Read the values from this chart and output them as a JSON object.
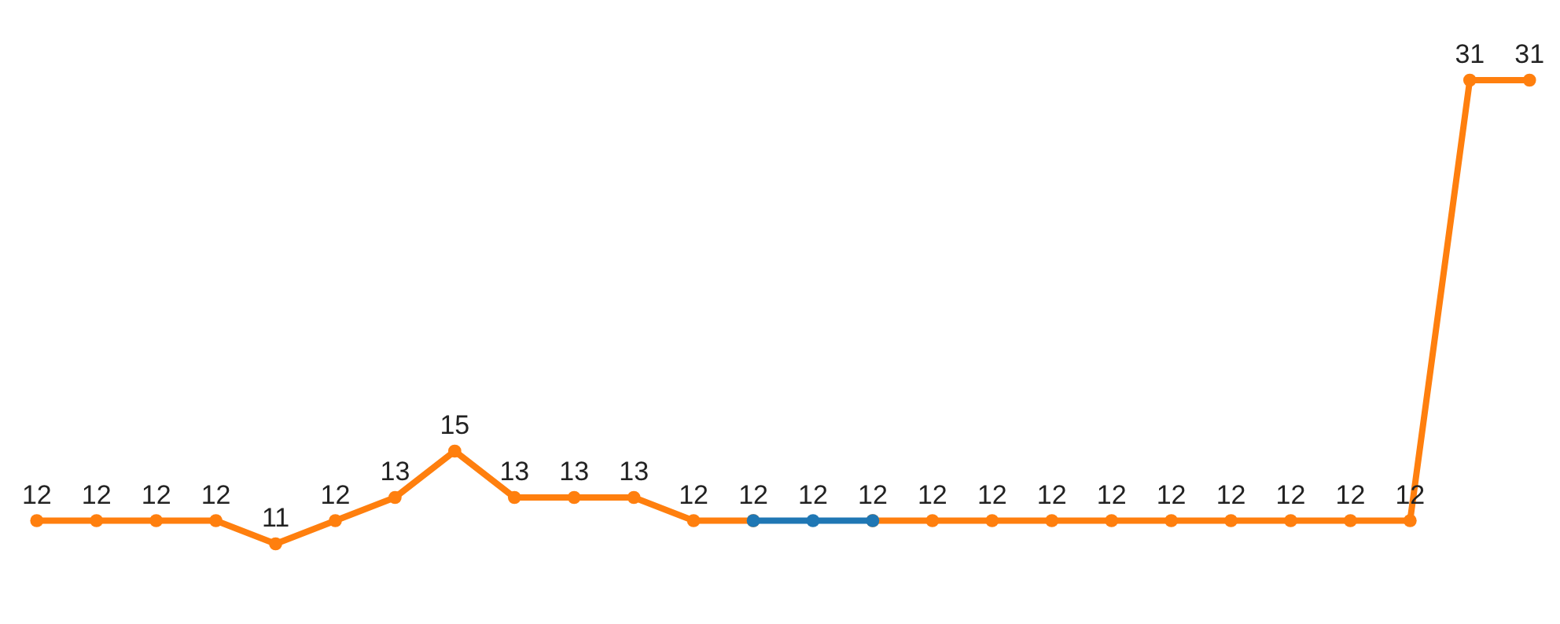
{
  "chart_data": {
    "type": "line",
    "categories": [
      null,
      null,
      null,
      null,
      null,
      null,
      null,
      null,
      null,
      null,
      null,
      null,
      null,
      null,
      null,
      null,
      null,
      null,
      null,
      null,
      null,
      null,
      null,
      null,
      null,
      null
    ],
    "marker": "circle",
    "line_style": "solid",
    "series": [
      {
        "color": "#ff7f0e",
        "values": [
          12,
          12,
          12,
          12,
          11,
          12,
          13,
          15,
          13,
          13,
          13,
          12,
          12,
          null,
          12,
          12,
          12,
          12,
          12,
          12,
          12,
          12,
          12,
          12,
          31,
          31
        ],
        "value_labels": [
          "12",
          "12",
          "12",
          "12",
          "11",
          "12",
          "13",
          "15",
          "13",
          "13",
          "13",
          "12",
          "12",
          null,
          "12",
          "12",
          "12",
          "12",
          "12",
          "12",
          "12",
          "12",
          "12",
          "12",
          "31",
          "31"
        ]
      },
      {
        "color": "#1f77b4",
        "values": [
          null,
          null,
          null,
          null,
          null,
          null,
          null,
          null,
          null,
          null,
          null,
          null,
          12,
          12,
          12,
          null,
          null,
          null,
          null,
          null,
          null,
          null,
          null,
          null,
          null,
          null
        ],
        "value_labels": [
          null,
          null,
          null,
          null,
          null,
          null,
          null,
          null,
          null,
          null,
          null,
          null,
          null,
          "12",
          null,
          null,
          null,
          null,
          null,
          null,
          null,
          null,
          null,
          null,
          null,
          null
        ]
      }
    ]
  }
}
